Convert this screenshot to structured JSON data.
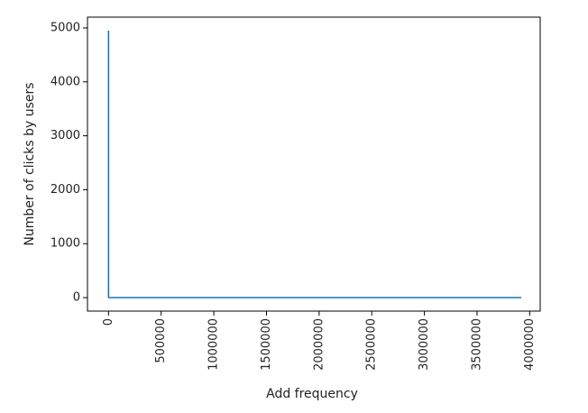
{
  "chart_data": {
    "type": "line",
    "xlabel": "Add frequency",
    "ylabel": "Number of clicks by users",
    "xlim": [
      -200000,
      4100000
    ],
    "ylim": [
      -250,
      5200
    ],
    "x_ticks": [
      0,
      500000,
      1000000,
      1500000,
      2000000,
      2500000,
      3000000,
      3500000,
      4000000
    ],
    "x_tick_labels": [
      "0",
      "500000",
      "1000000",
      "1500000",
      "2000000",
      "2500000",
      "3000000",
      "3500000",
      "4000000"
    ],
    "y_ticks": [
      0,
      1000,
      2000,
      3000,
      4000,
      5000
    ],
    "y_tick_labels": [
      "0",
      "1000",
      "2000",
      "3000",
      "4000",
      "5000"
    ],
    "grid": false,
    "series": [
      {
        "color": "#1f77b4",
        "x": [
          1,
          2,
          3,
          4,
          6,
          10,
          20,
          50,
          100,
          500,
          1000,
          10000,
          100000,
          1000000,
          2000000,
          3000000,
          3920000
        ],
        "y": [
          4950,
          2100,
          900,
          420,
          180,
          70,
          30,
          12,
          5,
          2,
          1,
          1,
          1,
          1,
          1,
          1,
          1
        ]
      }
    ]
  }
}
